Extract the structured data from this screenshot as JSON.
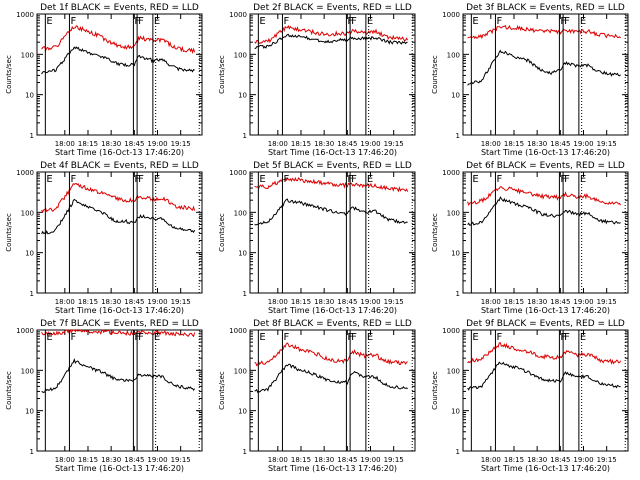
{
  "chart_data": {
    "type": "line",
    "panels": [
      {
        "title": "Det 1f BLACK = Events, RED = LLD",
        "red": [
          135,
          150,
          480,
          380,
          260,
          170,
          150,
          150,
          260,
          220,
          230,
          200,
          140,
          120
        ],
        "black": [
          35,
          40,
          150,
          110,
          90,
          60,
          55,
          55,
          90,
          70,
          75,
          60,
          45,
          38
        ]
      },
      {
        "title": "Det 2f BLACK = Events, RED = LLD",
        "red": [
          200,
          210,
          480,
          400,
          350,
          300,
          330,
          320,
          380,
          350,
          380,
          330,
          260,
          240
        ],
        "black": [
          150,
          160,
          300,
          280,
          230,
          200,
          230,
          220,
          260,
          240,
          260,
          240,
          200,
          190
        ]
      },
      {
        "title": "Det 3f BLACK = Events, RED = LLD",
        "red": [
          250,
          270,
          480,
          450,
          420,
          380,
          370,
          360,
          380,
          360,
          370,
          340,
          300,
          280
        ],
        "black": [
          18,
          22,
          120,
          90,
          70,
          40,
          35,
          40,
          60,
          50,
          55,
          45,
          35,
          30
        ]
      },
      {
        "title": "Det 4f BLACK = Events, RED = LLD",
        "red": [
          110,
          120,
          500,
          400,
          300,
          230,
          200,
          200,
          250,
          210,
          230,
          200,
          140,
          120
        ],
        "black": [
          30,
          35,
          200,
          140,
          100,
          60,
          60,
          55,
          80,
          70,
          70,
          55,
          40,
          35
        ]
      },
      {
        "title": "Det 5f BLACK = Events, RED = LLD",
        "red": [
          420,
          430,
          700,
          620,
          560,
          500,
          480,
          460,
          500,
          460,
          480,
          430,
          380,
          360
        ],
        "black": [
          50,
          60,
          200,
          170,
          140,
          110,
          100,
          90,
          130,
          100,
          110,
          90,
          65,
          55
        ]
      },
      {
        "title": "Det 6f BLACK = Events, RED = LLD",
        "red": [
          170,
          190,
          420,
          360,
          300,
          250,
          240,
          230,
          280,
          240,
          260,
          220,
          180,
          170
        ],
        "black": [
          50,
          55,
          220,
          170,
          130,
          90,
          85,
          80,
          110,
          90,
          95,
          80,
          60,
          55
        ]
      },
      {
        "title": "Det 7f BLACK = Events, RED = LLD",
        "red": [
          800,
          820,
          1000,
          950,
          900,
          860,
          850,
          830,
          870,
          850,
          860,
          820,
          790,
          780
        ],
        "black": [
          30,
          35,
          170,
          120,
          90,
          60,
          55,
          55,
          80,
          70,
          70,
          55,
          40,
          35
        ]
      },
      {
        "title": "Det 8f BLACK = Events, RED = LLD",
        "red": [
          140,
          160,
          450,
          320,
          270,
          180,
          170,
          170,
          300,
          220,
          250,
          200,
          160,
          150
        ],
        "black": [
          30,
          35,
          140,
          100,
          80,
          55,
          50,
          50,
          90,
          70,
          70,
          55,
          40,
          35
        ]
      },
      {
        "title": "Det 9f BLACK = Events, RED = LLD",
        "red": [
          170,
          190,
          450,
          350,
          290,
          220,
          210,
          210,
          280,
          240,
          250,
          220,
          170,
          160
        ],
        "black": [
          35,
          40,
          160,
          120,
          90,
          60,
          55,
          55,
          85,
          70,
          70,
          60,
          45,
          40
        ]
      }
    ],
    "x_hours": [
      17.75,
      17.9,
      18.1,
      18.25,
      18.4,
      18.55,
      18.65,
      18.75,
      18.8,
      18.95,
      19.05,
      19.1,
      19.2,
      19.4
    ],
    "x_ticks": [
      "18:00",
      "18:15",
      "18:30",
      "18:45",
      "19:00",
      "19:15"
    ],
    "x_tick_hours": [
      18.0,
      18.25,
      18.5,
      18.75,
      19.0,
      19.25
    ],
    "xlim_hours": [
      17.7,
      19.48
    ],
    "ylim": [
      1,
      1000
    ],
    "y_scale": "log",
    "y_ticks": [
      "1",
      "10",
      "100",
      "1000"
    ],
    "ylabel": "Counts/sec",
    "xlabel": "Start Time (16-Oct-13 17:46:20)",
    "red_color": "#dd0000",
    "black_color": "#000000",
    "markers": [
      {
        "kind": "solid",
        "hour": 17.79,
        "label": "E"
      },
      {
        "kind": "solid",
        "hour": 18.05,
        "label": "F"
      },
      {
        "kind": "solid",
        "hour": 18.74,
        "label": "F"
      },
      {
        "kind": "solid",
        "hour": 18.78,
        "label": "F"
      },
      {
        "kind": "solid",
        "hour": 18.95,
        "label": "E"
      },
      {
        "kind": "dotted",
        "hour": 18.98,
        "label": ""
      },
      {
        "kind": "dotted",
        "hour": 19.45,
        "label": ""
      }
    ]
  }
}
